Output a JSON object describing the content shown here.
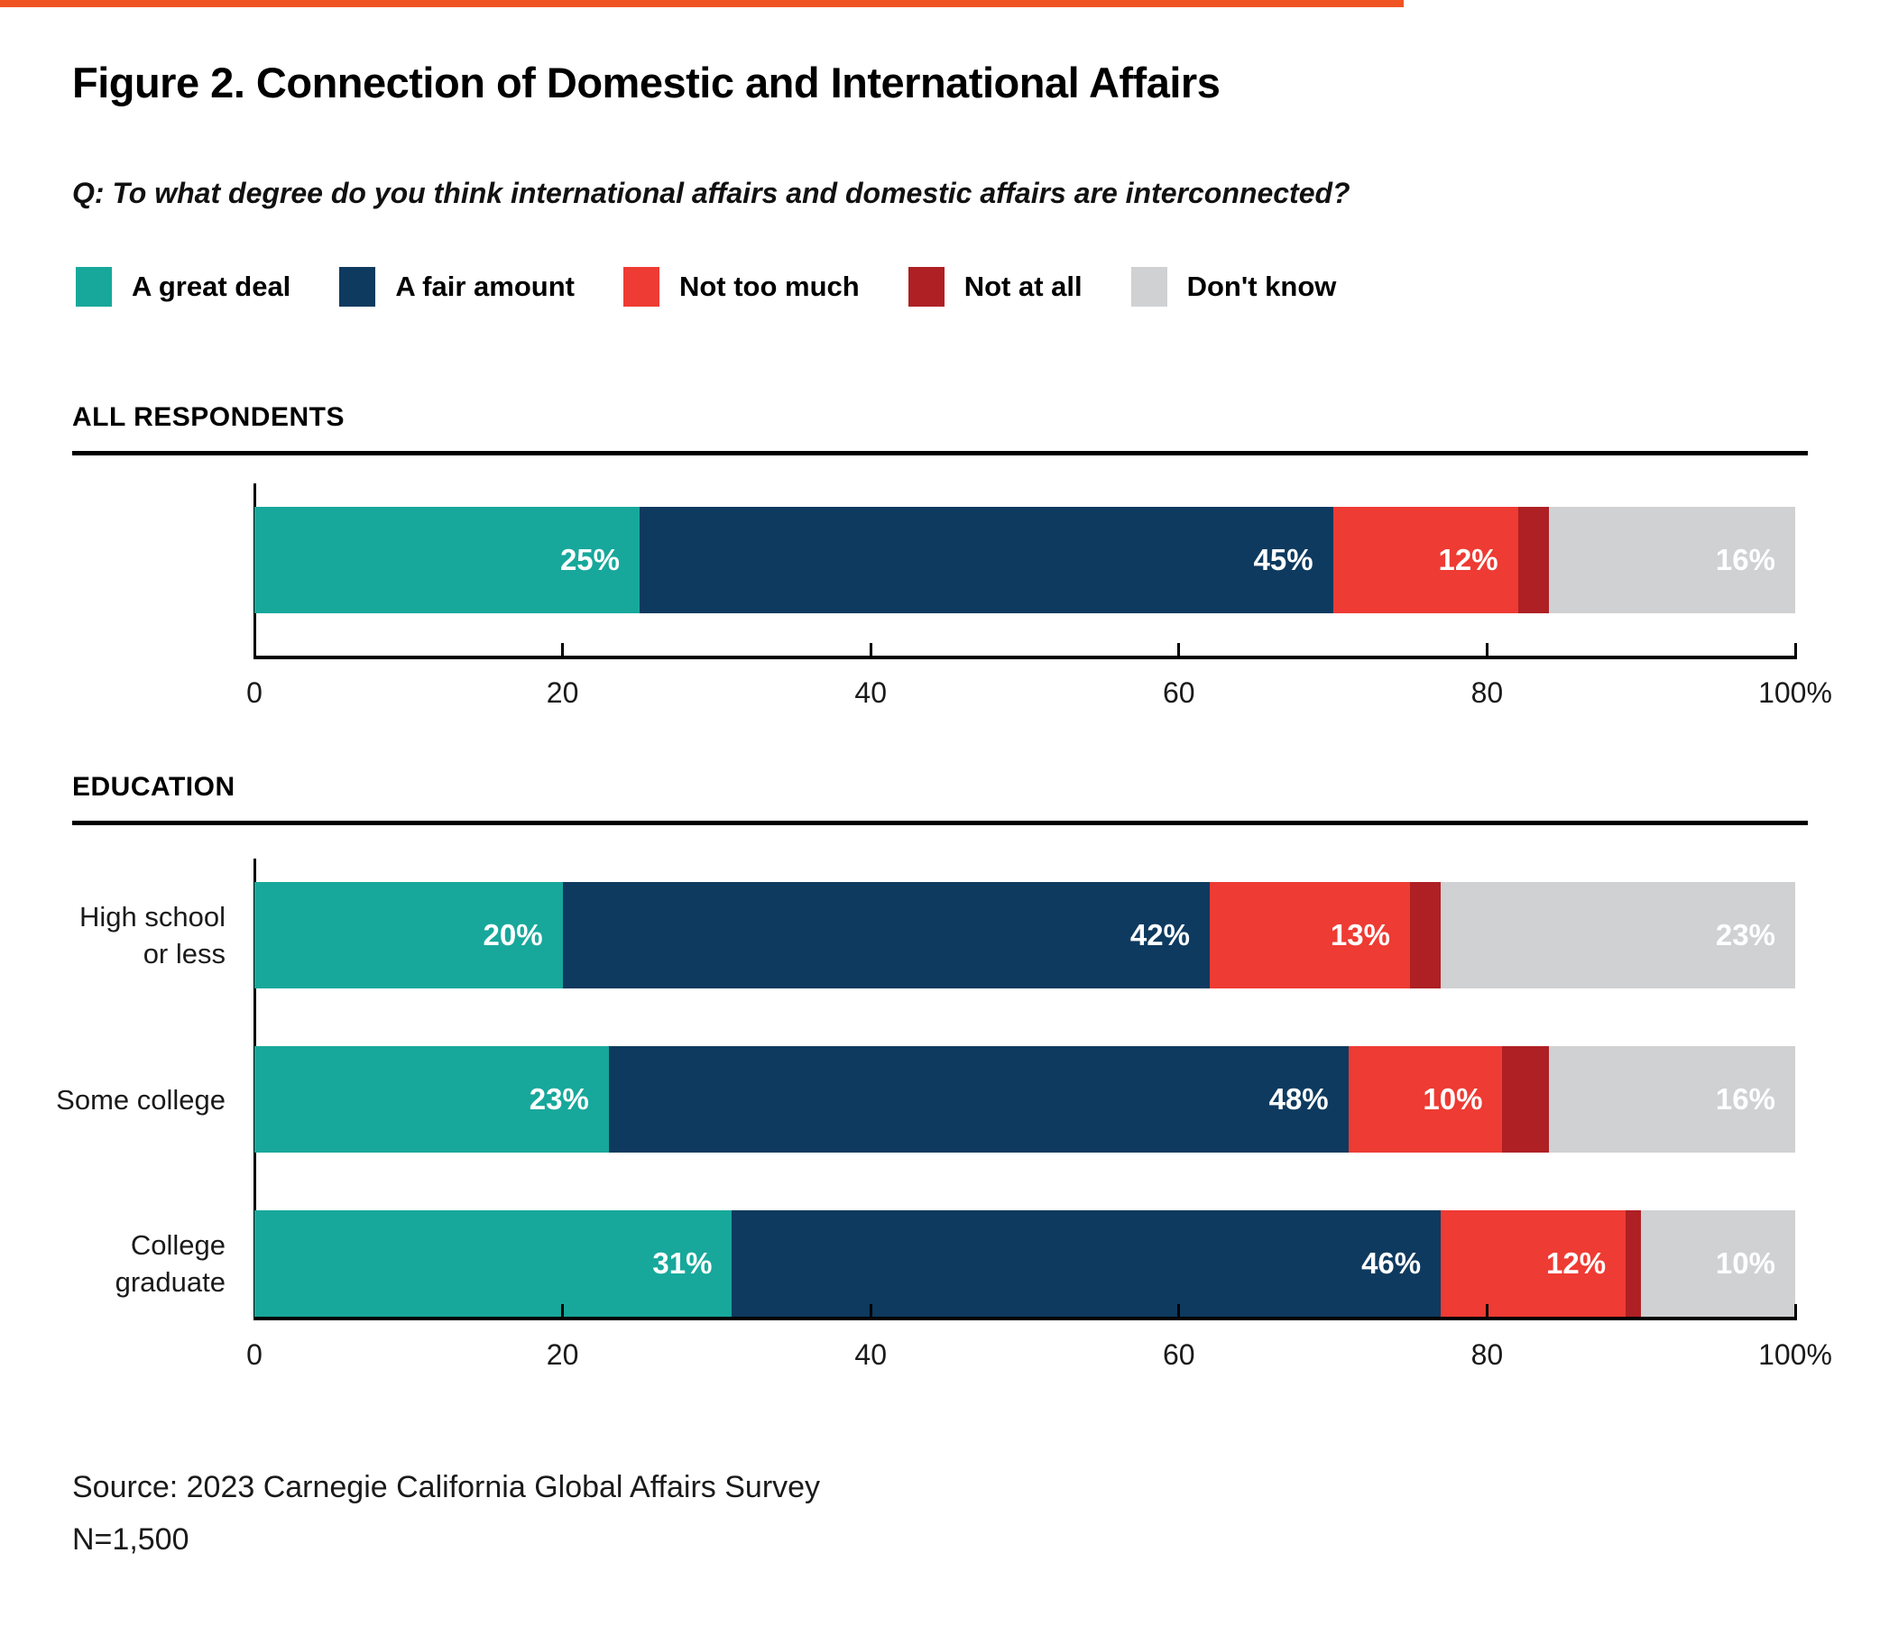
{
  "accent_rule_color": "#F05423",
  "title": "Figure 2. Connection of Domestic and International Affairs",
  "question": "Q: To what degree do you think international affairs and domestic affairs are interconnected?",
  "legend": [
    {
      "label": "A great deal",
      "color": "#17A89B"
    },
    {
      "label": "A fair amount",
      "color": "#0E3A5F"
    },
    {
      "label": "Not too much",
      "color": "#EE3B33"
    },
    {
      "label": "Not at all",
      "color": "#AE2024"
    },
    {
      "label": "Don't know",
      "color": "#D0D1D3"
    }
  ],
  "chart_data": [
    {
      "type": "bar",
      "section": "ALL RESPONDENTS",
      "orientation": "horizontal-stacked",
      "categories": [
        "All respondents"
      ],
      "category_lines": [
        [
          ""
        ]
      ],
      "series": [
        {
          "name": "A great deal",
          "values": [
            25
          ]
        },
        {
          "name": "A fair amount",
          "values": [
            45
          ]
        },
        {
          "name": "Not too much",
          "values": [
            12
          ]
        },
        {
          "name": "Not at all",
          "values": [
            2
          ]
        },
        {
          "name": "Don't know",
          "values": [
            16
          ]
        }
      ],
      "xlim": [
        0,
        100
      ],
      "ticks": [
        "0",
        "20",
        "40",
        "60",
        "80",
        "100%"
      ],
      "tick_values": [
        0,
        20,
        40,
        60,
        80,
        100
      ],
      "value_label_format": "percent",
      "min_value_for_label": 5
    },
    {
      "type": "bar",
      "section": "EDUCATION",
      "orientation": "horizontal-stacked",
      "categories": [
        "High school or less",
        "Some college",
        "College graduate"
      ],
      "category_lines": [
        [
          "High school",
          "or less"
        ],
        [
          "Some college"
        ],
        [
          "College",
          "graduate"
        ]
      ],
      "series": [
        {
          "name": "A great deal",
          "values": [
            20,
            23,
            31
          ]
        },
        {
          "name": "A fair amount",
          "values": [
            42,
            48,
            46
          ]
        },
        {
          "name": "Not too much",
          "values": [
            13,
            10,
            12
          ]
        },
        {
          "name": "Not at all",
          "values": [
            2,
            3,
            1
          ]
        },
        {
          "name": "Don't know",
          "values": [
            23,
            16,
            10
          ]
        }
      ],
      "xlim": [
        0,
        100
      ],
      "ticks": [
        "0",
        "20",
        "40",
        "60",
        "80",
        "100%"
      ],
      "tick_values": [
        0,
        20,
        40,
        60,
        80,
        100
      ],
      "value_label_format": "percent",
      "min_value_for_label": 5
    }
  ],
  "source_line1": "Source: 2023 Carnegie California Global Affairs Survey",
  "source_line2": "N=1,500"
}
